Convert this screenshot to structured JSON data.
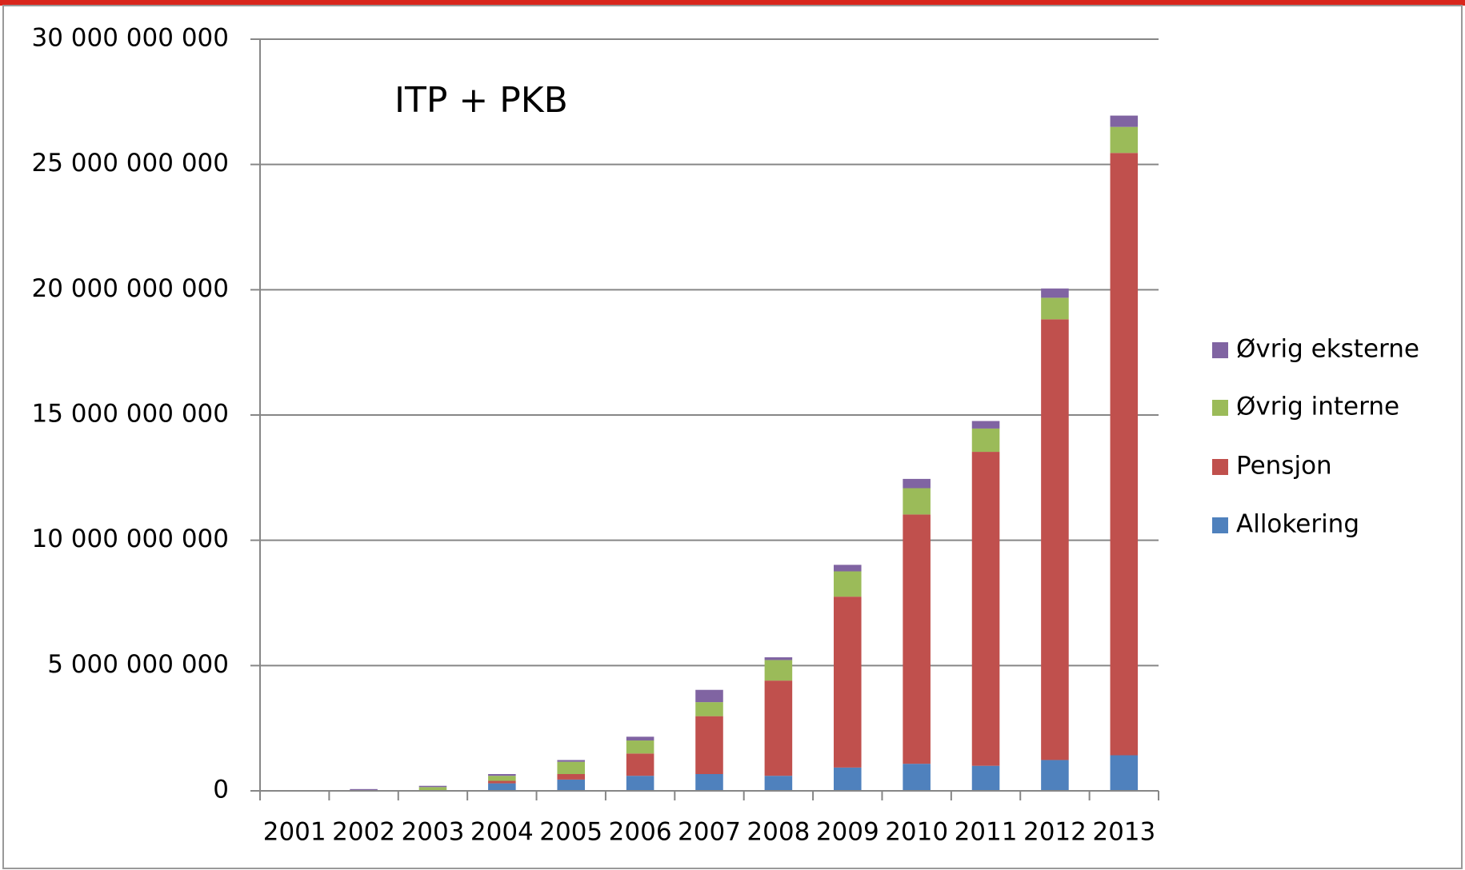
{
  "chart_data": {
    "type": "stacked_bar",
    "annotation": "ITP + PKB",
    "categories": [
      "2001",
      "2002",
      "2003",
      "2004",
      "2005",
      "2006",
      "2007",
      "2008",
      "2009",
      "2010",
      "2011",
      "2012",
      "2013"
    ],
    "series": [
      {
        "name": "Allokering",
        "color": "#4f81bd",
        "values": [
          0,
          0,
          20000000,
          300000000,
          450000000,
          600000000,
          670000000,
          600000000,
          930000000,
          1080000000,
          1000000000,
          1230000000,
          1420000000
        ]
      },
      {
        "name": "Pensjon",
        "color": "#c0504d",
        "values": [
          0,
          0,
          0,
          100000000,
          220000000,
          890000000,
          2310000000,
          3800000000,
          6820000000,
          9950000000,
          12530000000,
          17590000000,
          24040000000
        ]
      },
      {
        "name": "Øvrig interne",
        "color": "#9bbb59",
        "values": [
          0,
          0,
          130000000,
          200000000,
          490000000,
          520000000,
          560000000,
          820000000,
          1010000000,
          1050000000,
          930000000,
          860000000,
          1040000000
        ]
      },
      {
        "name": "Øvrig eksterne",
        "color": "#8064a2",
        "values": [
          0,
          70000000,
          50000000,
          70000000,
          70000000,
          150000000,
          490000000,
          110000000,
          260000000,
          370000000,
          300000000,
          370000000,
          450000000
        ]
      }
    ],
    "ylim": [
      0,
      30000000000
    ],
    "yticks": [
      0,
      {
        "value": 5000000000,
        "label": "5 000 000 000"
      },
      {
        "value": 10000000000,
        "label": "10 000 000 000"
      },
      {
        "value": 15000000000,
        "label": "15 000 000 000"
      },
      {
        "value": 20000000000,
        "label": "20 000 000 000"
      },
      {
        "value": 25000000000,
        "label": "25 000 000 000"
      },
      {
        "value": 30000000000,
        "label": "30 000 000 000"
      }
    ],
    "grid": true
  }
}
